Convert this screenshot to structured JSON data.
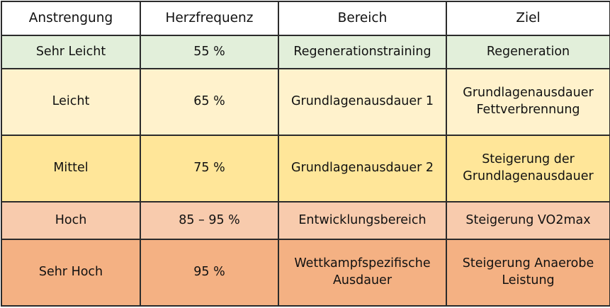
{
  "table": {
    "headers": [
      "Anstrengung",
      "Herzfrequenz",
      "Bereich",
      "Ziel"
    ],
    "rows": [
      {
        "color": "#e2efda",
        "cells": [
          [
            "Sehr Leicht"
          ],
          [
            "55 %"
          ],
          [
            "Regenerationstraining"
          ],
          [
            "Regeneration"
          ]
        ]
      },
      {
        "color": "#fff2cc",
        "cells": [
          [
            "Leicht"
          ],
          [
            "65 %"
          ],
          [
            "Grundlagenausdauer 1"
          ],
          [
            "Grundlagenausdauer",
            "Fettverbrennung"
          ]
        ]
      },
      {
        "color": "#ffe699",
        "cells": [
          [
            "Mittel"
          ],
          [
            "75 %"
          ],
          [
            "Grundlagenausdauer 2"
          ],
          [
            "Steigerung der",
            "Grundlagenausdauer"
          ]
        ]
      },
      {
        "color": "#f8cbad",
        "cells": [
          [
            "Hoch"
          ],
          [
            "85 – 95 %"
          ],
          [
            "Entwicklungsbereich"
          ],
          [
            "Steigerung VO2max"
          ]
        ]
      },
      {
        "color": "#f4b183",
        "cells": [
          [
            "Sehr Hoch"
          ],
          [
            "95 %"
          ],
          [
            "Wettkampfspezifische",
            "Ausdauer"
          ],
          [
            "Steigerung Anaerobe",
            "Leistung"
          ]
        ]
      }
    ]
  }
}
